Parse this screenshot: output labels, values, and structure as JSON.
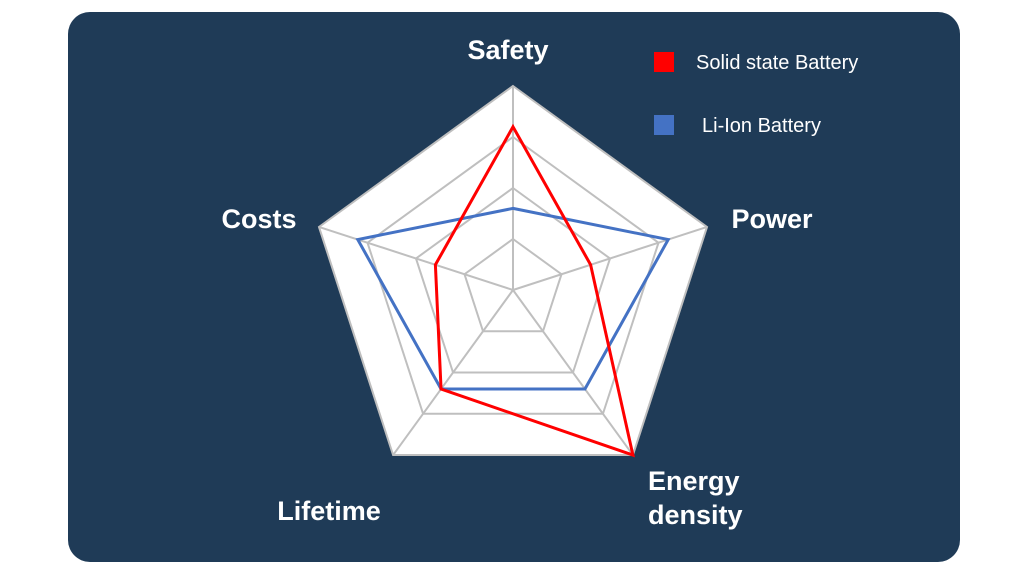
{
  "chart_data": {
    "type": "radar",
    "categories": [
      "Safety",
      "Power",
      "Energy density",
      "Lifetime",
      "Costs"
    ],
    "category_lines": [
      [
        "Safety"
      ],
      [
        "Power"
      ],
      [
        "Energy",
        "density"
      ],
      [
        "Lifetime"
      ],
      [
        "Costs"
      ]
    ],
    "rmin": 0,
    "rmax": 5,
    "rings": 4,
    "grid": true,
    "legend_position": "top-right",
    "series": [
      {
        "name": "Solid state Battery",
        "color": "#ff0000",
        "values": [
          4,
          2,
          5,
          3,
          2
        ]
      },
      {
        "name": "Li-Ion Battery",
        "color": "#4472c4",
        "values": [
          2,
          4,
          3,
          3,
          4
        ]
      }
    ],
    "colors": {
      "panel": "#1f3b57",
      "grid_fill": "#ffffff",
      "grid_line": "#bfbfbf"
    }
  }
}
